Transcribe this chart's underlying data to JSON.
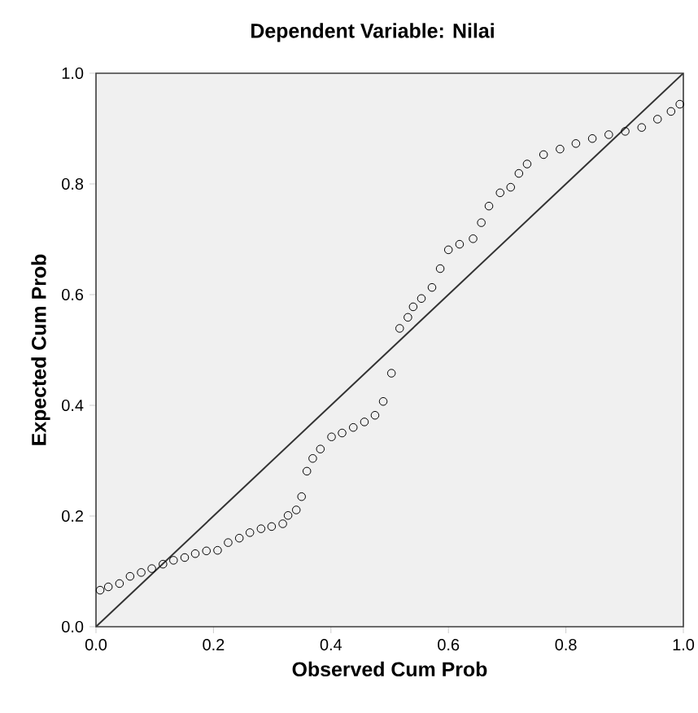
{
  "chart_data": {
    "type": "scatter",
    "title": "Dependent Variable: Nilai",
    "xlabel": "Observed Cum Prob",
    "ylabel": "Expected Cum Prob",
    "xlim": [
      0,
      1
    ],
    "ylim": [
      0,
      1
    ],
    "xticks": [
      {
        "value": 0,
        "label": "0.0"
      },
      {
        "value": 0.2,
        "label": "0.2"
      },
      {
        "value": 0.4,
        "label": "0.4"
      },
      {
        "value": 0.6,
        "label": "0.6"
      },
      {
        "value": 0.8,
        "label": "0.8"
      },
      {
        "value": 1,
        "label": "1.0"
      }
    ],
    "yticks": [
      {
        "value": 0,
        "label": "0.0"
      },
      {
        "value": 0.2,
        "label": "0.2"
      },
      {
        "value": 0.4,
        "label": "0.4"
      },
      {
        "value": 0.6,
        "label": "0.6"
      },
      {
        "value": 0.8,
        "label": "0.8"
      },
      {
        "value": 1,
        "label": "1.0"
      }
    ],
    "grid": false,
    "series": [
      {
        "color": "#000000",
        "marker": "circle",
        "x": [
          0.007,
          0.021,
          0.04,
          0.058,
          0.077,
          0.095,
          0.114,
          0.132,
          0.151,
          0.169,
          0.188,
          0.207,
          0.225,
          0.244,
          0.262,
          0.281,
          0.299,
          0.318,
          0.327,
          0.341,
          0.35,
          0.359,
          0.369,
          0.382,
          0.401,
          0.419,
          0.438,
          0.457,
          0.475,
          0.489,
          0.503,
          0.517,
          0.531,
          0.54,
          0.554,
          0.572,
          0.586,
          0.6,
          0.619,
          0.642,
          0.656,
          0.669,
          0.688,
          0.706,
          0.72,
          0.734,
          0.762,
          0.79,
          0.817,
          0.845,
          0.873,
          0.901,
          0.929,
          0.956,
          0.979,
          0.994
        ],
        "values": [
          0.066,
          0.072,
          0.078,
          0.091,
          0.098,
          0.105,
          0.113,
          0.12,
          0.125,
          0.132,
          0.137,
          0.138,
          0.152,
          0.16,
          0.17,
          0.177,
          0.181,
          0.186,
          0.201,
          0.211,
          0.235,
          0.281,
          0.304,
          0.321,
          0.343,
          0.35,
          0.36,
          0.37,
          0.382,
          0.407,
          0.458,
          0.539,
          0.559,
          0.578,
          0.593,
          0.613,
          0.647,
          0.681,
          0.691,
          0.701,
          0.73,
          0.76,
          0.784,
          0.794,
          0.819,
          0.836,
          0.853,
          0.863,
          0.873,
          0.882,
          0.889,
          0.895,
          0.902,
          0.917,
          0.931,
          0.944
        ]
      },
      {
        "type": "line",
        "color": "#333333",
        "marker": "none",
        "line_style": "solid",
        "x": [
          0,
          1
        ],
        "values": [
          0,
          1
        ]
      }
    ]
  }
}
